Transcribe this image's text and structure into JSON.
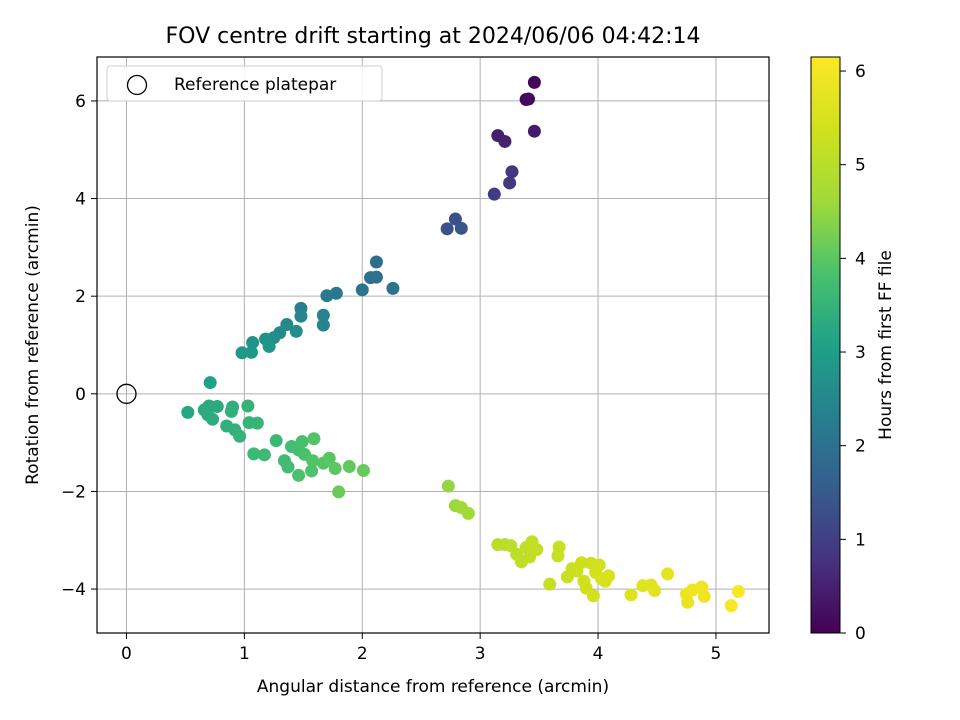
{
  "chart_data": {
    "type": "scatter",
    "title": "FOV centre drift starting at 2024/06/06 04:42:14",
    "xlabel": "Angular distance from reference (arcmin)",
    "ylabel": "Rotation from reference (arcmin)",
    "xlim": [
      -0.25,
      5.45
    ],
    "ylim": [
      -4.9,
      6.9
    ],
    "xticks": [
      0,
      1,
      2,
      3,
      4,
      5
    ],
    "yticks": [
      -4,
      -2,
      0,
      2,
      4,
      6
    ],
    "grid": true,
    "legend": {
      "position": "top-left",
      "entries": [
        "Reference platepar"
      ]
    },
    "colorbar": {
      "label": "Hours from first FF file",
      "range": [
        0,
        6.15
      ],
      "ticks": [
        0,
        1,
        2,
        3,
        4,
        5,
        6
      ],
      "colormap": "viridis"
    },
    "reference_point": {
      "x": 0,
      "y": 0
    },
    "series": [
      {
        "points": [
          {
            "x": 3.46,
            "y": 6.38,
            "c": 0.05
          },
          {
            "x": 3.39,
            "y": 6.03,
            "c": 0.1
          },
          {
            "x": 3.41,
            "y": 6.04,
            "c": 0.15
          },
          {
            "x": 3.15,
            "y": 5.29,
            "c": 0.45
          },
          {
            "x": 3.21,
            "y": 5.17,
            "c": 0.5
          },
          {
            "x": 3.46,
            "y": 5.38,
            "c": 0.4
          },
          {
            "x": 3.27,
            "y": 4.55,
            "c": 0.85
          },
          {
            "x": 3.25,
            "y": 4.32,
            "c": 0.9
          },
          {
            "x": 3.12,
            "y": 4.09,
            "c": 0.95
          },
          {
            "x": 2.79,
            "y": 3.58,
            "c": 1.3
          },
          {
            "x": 2.72,
            "y": 3.38,
            "c": 1.35
          },
          {
            "x": 2.84,
            "y": 3.39,
            "c": 1.4
          },
          {
            "x": 2.12,
            "y": 2.7,
            "c": 1.9
          },
          {
            "x": 2.07,
            "y": 2.38,
            "c": 1.95
          },
          {
            "x": 2.12,
            "y": 2.39,
            "c": 2.0
          },
          {
            "x": 2.26,
            "y": 2.16,
            "c": 2.05
          },
          {
            "x": 2.0,
            "y": 2.13,
            "c": 2.1
          },
          {
            "x": 1.78,
            "y": 2.06,
            "c": 2.15
          },
          {
            "x": 1.7,
            "y": 2.01,
            "c": 2.2
          },
          {
            "x": 1.48,
            "y": 1.75,
            "c": 2.3
          },
          {
            "x": 1.67,
            "y": 1.61,
            "c": 2.35
          },
          {
            "x": 1.67,
            "y": 1.41,
            "c": 2.4
          },
          {
            "x": 1.48,
            "y": 1.59,
            "c": 2.45
          },
          {
            "x": 1.36,
            "y": 1.42,
            "c": 2.5
          },
          {
            "x": 1.3,
            "y": 1.25,
            "c": 2.55
          },
          {
            "x": 1.44,
            "y": 1.28,
            "c": 2.6
          },
          {
            "x": 1.25,
            "y": 1.15,
            "c": 2.65
          },
          {
            "x": 1.18,
            "y": 1.12,
            "c": 2.7
          },
          {
            "x": 1.07,
            "y": 1.05,
            "c": 2.75
          },
          {
            "x": 1.21,
            "y": 0.97,
            "c": 2.8
          },
          {
            "x": 1.06,
            "y": 0.85,
            "c": 2.85
          },
          {
            "x": 0.98,
            "y": 0.84,
            "c": 2.9
          },
          {
            "x": 0.71,
            "y": 0.23,
            "c": 3.1
          },
          {
            "x": 0.52,
            "y": -0.38,
            "c": 3.2
          },
          {
            "x": 0.66,
            "y": -0.33,
            "c": 3.25
          },
          {
            "x": 0.7,
            "y": -0.25,
            "c": 3.28
          },
          {
            "x": 0.77,
            "y": -0.26,
            "c": 3.3
          },
          {
            "x": 0.69,
            "y": -0.43,
            "c": 3.32
          },
          {
            "x": 0.73,
            "y": -0.52,
            "c": 3.35
          },
          {
            "x": 0.9,
            "y": -0.27,
            "c": 3.38
          },
          {
            "x": 0.89,
            "y": -0.36,
            "c": 3.4
          },
          {
            "x": 0.85,
            "y": -0.66,
            "c": 3.42
          },
          {
            "x": 0.92,
            "y": -0.74,
            "c": 3.44
          },
          {
            "x": 0.96,
            "y": -0.87,
            "c": 3.46
          },
          {
            "x": 1.03,
            "y": -0.25,
            "c": 3.48
          },
          {
            "x": 1.04,
            "y": -0.59,
            "c": 3.5
          },
          {
            "x": 1.11,
            "y": -0.6,
            "c": 3.52
          },
          {
            "x": 1.27,
            "y": -0.96,
            "c": 3.6
          },
          {
            "x": 1.08,
            "y": -1.23,
            "c": 3.62
          },
          {
            "x": 1.17,
            "y": -1.25,
            "c": 3.65
          },
          {
            "x": 1.34,
            "y": -1.37,
            "c": 3.7
          },
          {
            "x": 1.37,
            "y": -1.5,
            "c": 3.72
          },
          {
            "x": 1.4,
            "y": -1.08,
            "c": 3.75
          },
          {
            "x": 1.46,
            "y": -1.15,
            "c": 3.78
          },
          {
            "x": 1.49,
            "y": -0.98,
            "c": 3.8
          },
          {
            "x": 1.51,
            "y": -1.24,
            "c": 3.82
          },
          {
            "x": 1.46,
            "y": -1.67,
            "c": 3.85
          },
          {
            "x": 1.57,
            "y": -1.58,
            "c": 3.88
          },
          {
            "x": 1.58,
            "y": -1.37,
            "c": 3.9
          },
          {
            "x": 1.59,
            "y": -0.92,
            "c": 3.92
          },
          {
            "x": 1.67,
            "y": -1.42,
            "c": 3.95
          },
          {
            "x": 1.72,
            "y": -1.32,
            "c": 3.98
          },
          {
            "x": 1.77,
            "y": -1.53,
            "c": 4.0
          },
          {
            "x": 1.89,
            "y": -1.49,
            "c": 4.05
          },
          {
            "x": 2.01,
            "y": -1.57,
            "c": 4.1
          },
          {
            "x": 1.8,
            "y": -2.01,
            "c": 4.15
          },
          {
            "x": 2.73,
            "y": -1.89,
            "c": 4.5
          },
          {
            "x": 2.79,
            "y": -2.29,
            "c": 4.55
          },
          {
            "x": 2.84,
            "y": -2.33,
            "c": 4.6
          },
          {
            "x": 2.9,
            "y": -2.45,
            "c": 4.65
          },
          {
            "x": 3.15,
            "y": -3.09,
            "c": 5.0
          },
          {
            "x": 3.21,
            "y": -3.09,
            "c": 5.02
          },
          {
            "x": 3.26,
            "y": -3.11,
            "c": 5.05
          },
          {
            "x": 3.31,
            "y": -3.29,
            "c": 5.08
          },
          {
            "x": 3.35,
            "y": -3.44,
            "c": 5.1
          },
          {
            "x": 3.39,
            "y": -3.15,
            "c": 5.12
          },
          {
            "x": 3.42,
            "y": -3.34,
            "c": 5.14
          },
          {
            "x": 3.44,
            "y": -3.03,
            "c": 5.16
          },
          {
            "x": 3.48,
            "y": -3.19,
            "c": 5.18
          },
          {
            "x": 3.59,
            "y": -3.9,
            "c": 5.2
          },
          {
            "x": 3.67,
            "y": -3.14,
            "c": 5.22
          },
          {
            "x": 3.66,
            "y": -3.32,
            "c": 5.24
          },
          {
            "x": 3.74,
            "y": -3.75,
            "c": 5.26
          },
          {
            "x": 3.78,
            "y": -3.58,
            "c": 5.28
          },
          {
            "x": 3.82,
            "y": -3.63,
            "c": 5.3
          },
          {
            "x": 3.86,
            "y": -3.46,
            "c": 5.32
          },
          {
            "x": 3.88,
            "y": -3.84,
            "c": 5.34
          },
          {
            "x": 3.9,
            "y": -3.98,
            "c": 5.36
          },
          {
            "x": 3.94,
            "y": -3.47,
            "c": 5.38
          },
          {
            "x": 3.96,
            "y": -4.14,
            "c": 5.4
          },
          {
            "x": 3.98,
            "y": -3.66,
            "c": 5.42
          },
          {
            "x": 4.01,
            "y": -3.51,
            "c": 5.44
          },
          {
            "x": 4.03,
            "y": -3.79,
            "c": 5.46
          },
          {
            "x": 4.06,
            "y": -3.84,
            "c": 5.48
          },
          {
            "x": 4.09,
            "y": -3.73,
            "c": 5.5
          },
          {
            "x": 4.28,
            "y": -4.12,
            "c": 5.6
          },
          {
            "x": 4.38,
            "y": -3.93,
            "c": 5.65
          },
          {
            "x": 4.45,
            "y": -3.92,
            "c": 5.68
          },
          {
            "x": 4.48,
            "y": -4.03,
            "c": 5.7
          },
          {
            "x": 4.59,
            "y": -3.69,
            "c": 5.72
          },
          {
            "x": 4.76,
            "y": -4.27,
            "c": 5.85
          },
          {
            "x": 4.75,
            "y": -4.1,
            "c": 5.88
          },
          {
            "x": 4.8,
            "y": -4.02,
            "c": 5.9
          },
          {
            "x": 4.88,
            "y": -3.96,
            "c": 5.93
          },
          {
            "x": 4.9,
            "y": -4.15,
            "c": 5.95
          },
          {
            "x": 5.13,
            "y": -4.34,
            "c": 6.05
          },
          {
            "x": 5.19,
            "y": -4.05,
            "c": 6.1
          }
        ]
      }
    ]
  }
}
